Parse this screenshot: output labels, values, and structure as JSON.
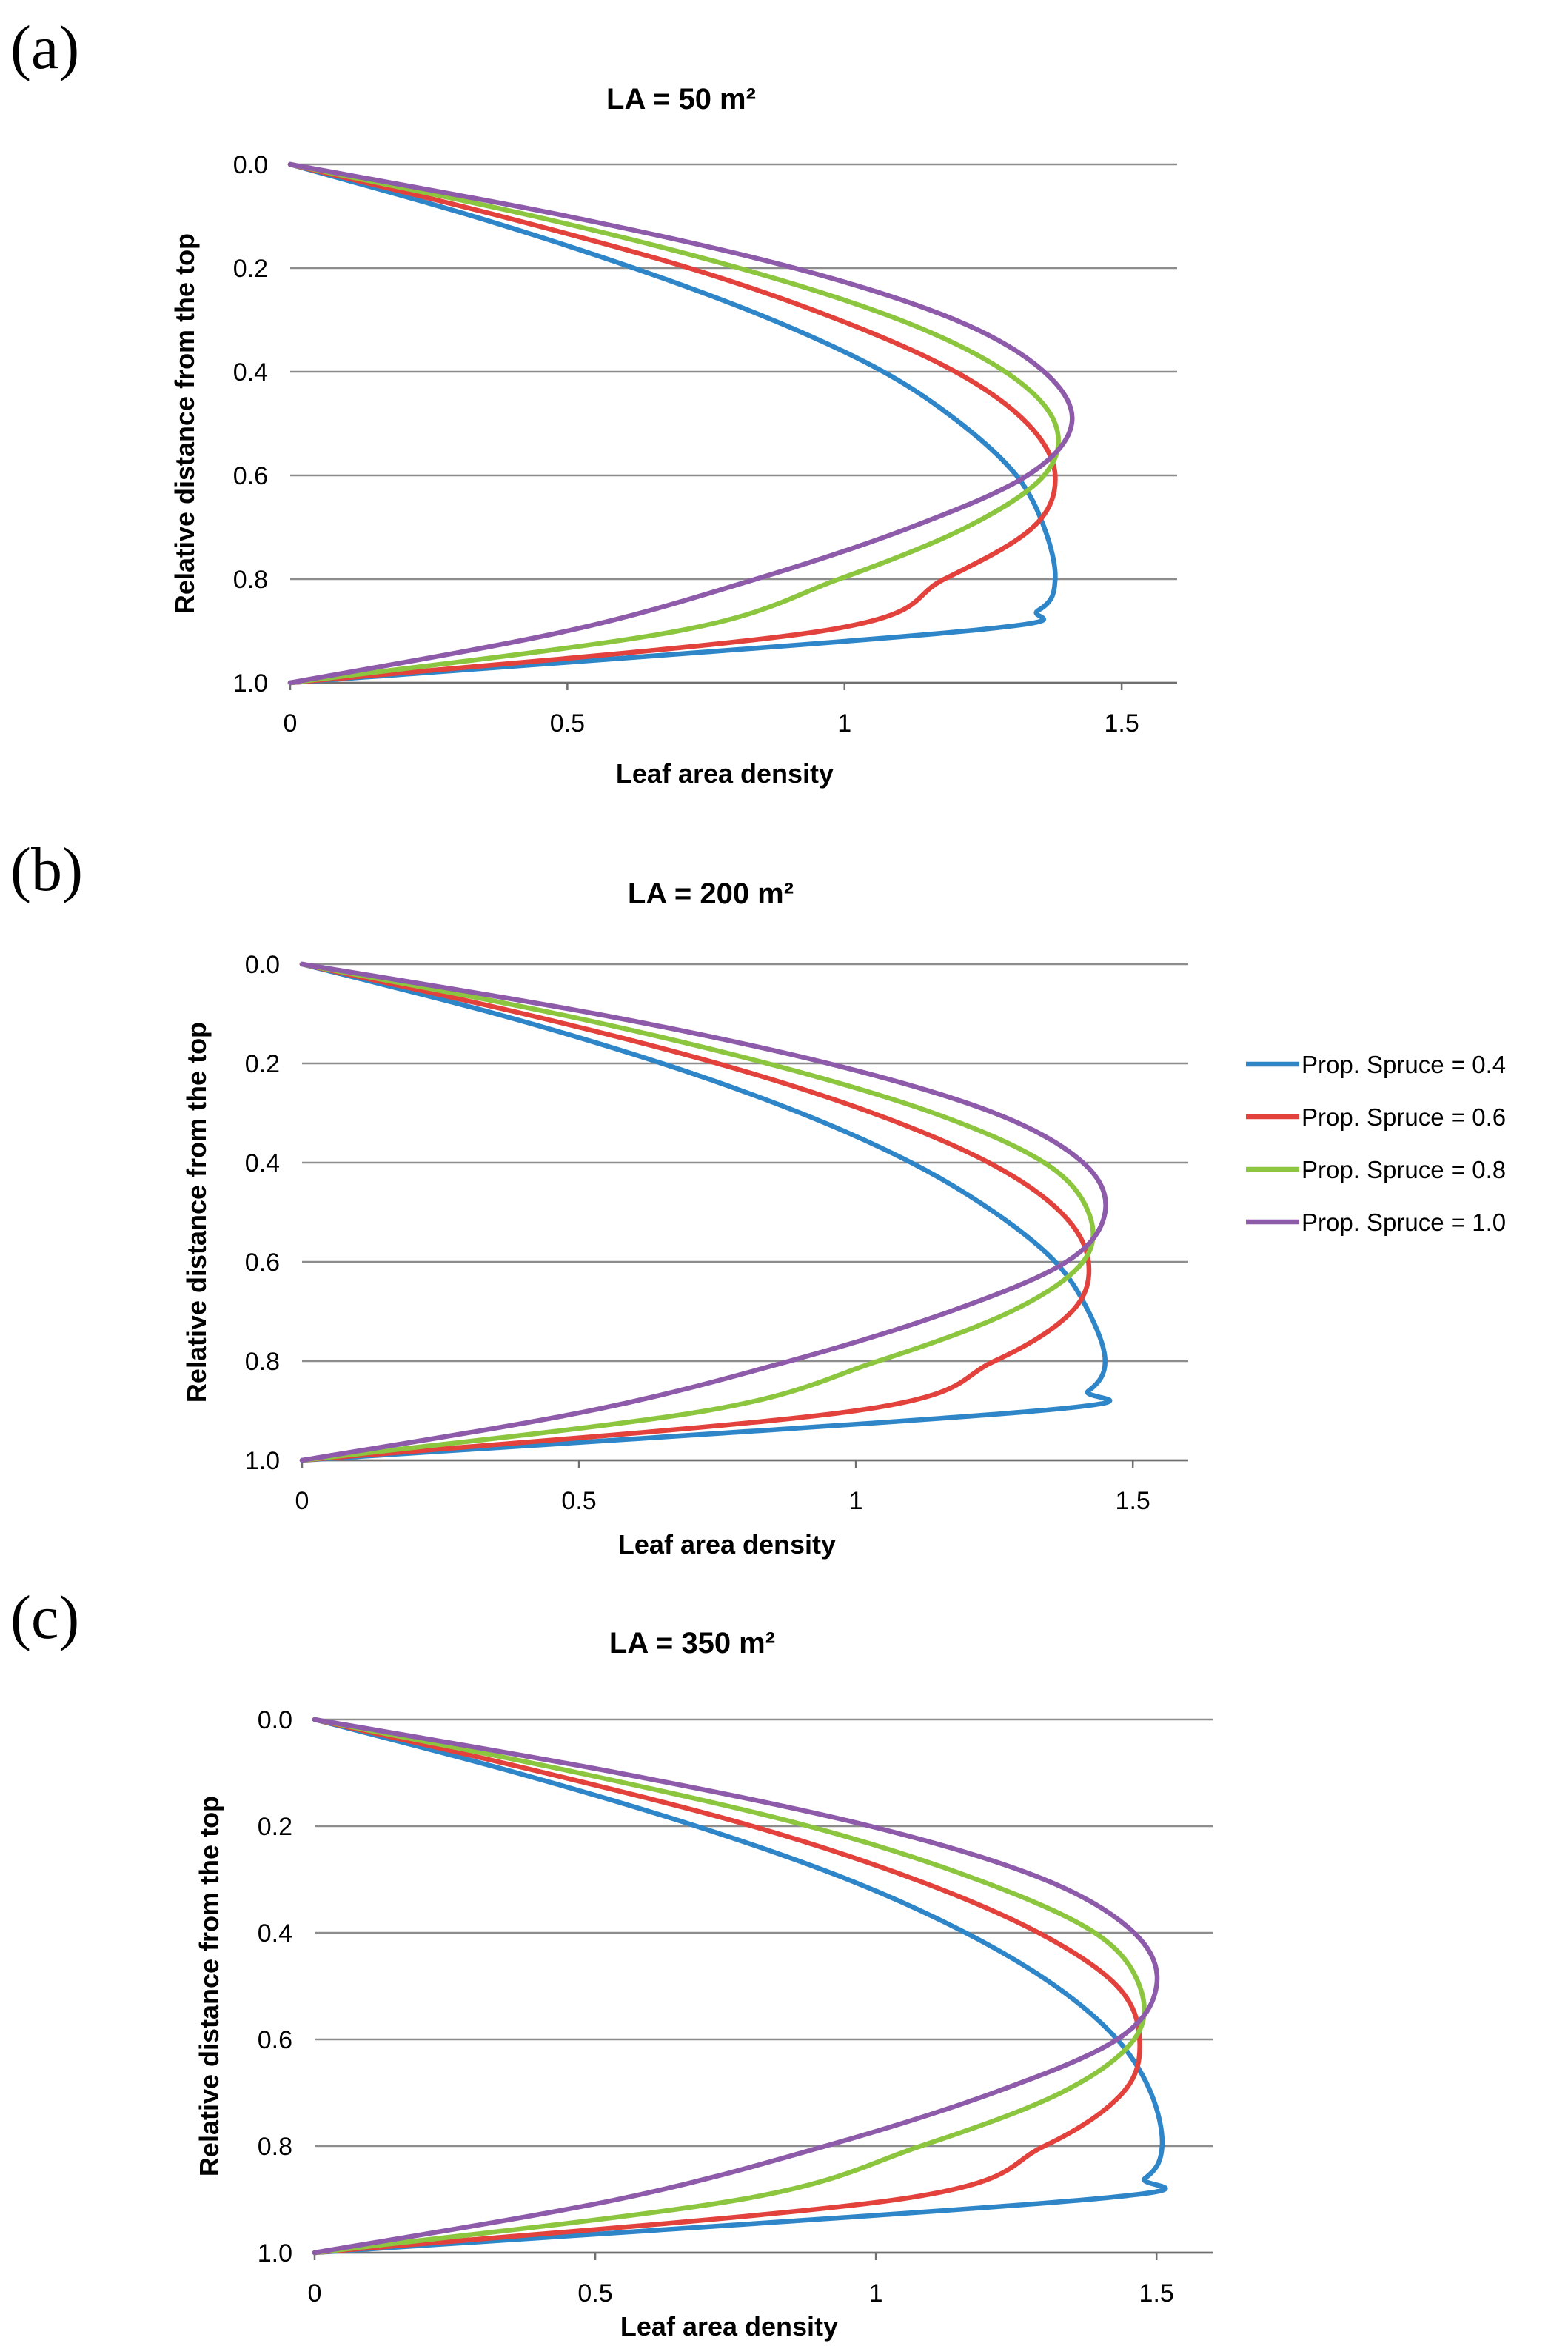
{
  "chart_data": [
    {
      "type": "line",
      "panel_label": "(a)",
      "title": "LA = 50 m²",
      "xlabel": "Leaf area density",
      "ylabel": "Relative distance from the top",
      "xlim": [
        0,
        1.6
      ],
      "ylim": [
        0,
        1
      ],
      "y_reversed": true,
      "grid": "horizontal",
      "xticks": [
        "0",
        "0.5",
        "1",
        "1.5"
      ],
      "yticks": [
        "0.0",
        "0.2",
        "0.4",
        "0.6",
        "0.8",
        "1.0"
      ],
      "series": [
        {
          "name": "Prop. Spruce = 0.4",
          "color": "#2E86C9",
          "x": [
            0,
            0.33,
            0.62,
            0.87,
            1.07,
            1.21,
            1.31,
            1.36,
            1.38,
            1.35,
            1.22,
            0
          ],
          "y": [
            0,
            0.1,
            0.2,
            0.3,
            0.4,
            0.5,
            0.6,
            0.7,
            0.8,
            0.86,
            0.9,
            1.0
          ]
        },
        {
          "name": "Prop. Spruce = 0.6",
          "color": "#E2413C",
          "x": [
            0,
            0.38,
            0.72,
            0.99,
            1.2,
            1.33,
            1.38,
            1.34,
            1.18,
            0.96,
            0
          ],
          "y": [
            0,
            0.1,
            0.2,
            0.3,
            0.4,
            0.5,
            0.6,
            0.7,
            0.8,
            0.9,
            1.0
          ]
        },
        {
          "name": "Prop. Spruce = 0.8",
          "color": "#8CC63F",
          "x": [
            0,
            0.44,
            0.81,
            1.1,
            1.29,
            1.38,
            1.36,
            1.22,
            0.99,
            0.7,
            0
          ],
          "y": [
            0,
            0.1,
            0.2,
            0.3,
            0.4,
            0.5,
            0.6,
            0.7,
            0.8,
            0.9,
            1.0
          ]
        },
        {
          "name": "Prop. Spruce = 1.0",
          "color": "#8E5BAA",
          "x": [
            0,
            0.5,
            0.91,
            1.2,
            1.36,
            1.41,
            1.33,
            1.12,
            0.84,
            0.5,
            0
          ],
          "y": [
            0,
            0.1,
            0.2,
            0.3,
            0.4,
            0.5,
            0.6,
            0.7,
            0.8,
            0.9,
            1.0
          ]
        }
      ]
    },
    {
      "type": "line",
      "panel_label": "(b)",
      "title": "LA = 200 m²",
      "xlabel": "Leaf area density",
      "ylabel": "Relative distance from the top",
      "xlim": [
        0,
        1.6
      ],
      "ylim": [
        0,
        1
      ],
      "y_reversed": true,
      "grid": "horizontal",
      "xticks": [
        "0",
        "0.5",
        "1",
        "1.5"
      ],
      "yticks": [
        "0.0",
        "0.2",
        "0.4",
        "0.6",
        "0.8",
        "1.0"
      ],
      "legend": {
        "position": "right",
        "entries": [
          "Prop. Spruce = 0.4",
          "Prop. Spruce = 0.6",
          "Prop. Spruce = 0.8",
          "Prop. Spruce = 1.0"
        ]
      },
      "series": [
        {
          "name": "Prop. Spruce = 0.4",
          "color": "#2E86C9",
          "x": [
            0,
            0.35,
            0.65,
            0.9,
            1.1,
            1.25,
            1.36,
            1.42,
            1.45,
            1.42,
            1.33,
            0
          ],
          "y": [
            0,
            0.1,
            0.2,
            0.3,
            0.4,
            0.5,
            0.6,
            0.7,
            0.8,
            0.86,
            0.9,
            1.0
          ]
        },
        {
          "name": "Prop. Spruce = 0.6",
          "color": "#E2413C",
          "x": [
            0,
            0.4,
            0.75,
            1.03,
            1.24,
            1.37,
            1.42,
            1.39,
            1.25,
            1.0,
            0
          ],
          "y": [
            0,
            0.1,
            0.2,
            0.3,
            0.4,
            0.5,
            0.6,
            0.7,
            0.8,
            0.9,
            1.0
          ]
        },
        {
          "name": "Prop. Spruce = 0.8",
          "color": "#8CC63F",
          "x": [
            0,
            0.46,
            0.84,
            1.14,
            1.34,
            1.42,
            1.41,
            1.28,
            1.04,
            0.73,
            0
          ],
          "y": [
            0,
            0.1,
            0.2,
            0.3,
            0.4,
            0.5,
            0.6,
            0.7,
            0.8,
            0.9,
            1.0
          ]
        },
        {
          "name": "Prop. Spruce = 1.0",
          "color": "#8E5BAA",
          "x": [
            0,
            0.53,
            0.95,
            1.25,
            1.41,
            1.45,
            1.38,
            1.17,
            0.88,
            0.52,
            0
          ],
          "y": [
            0,
            0.1,
            0.2,
            0.3,
            0.4,
            0.5,
            0.6,
            0.7,
            0.8,
            0.9,
            1.0
          ]
        }
      ]
    },
    {
      "type": "line",
      "panel_label": "(c)",
      "title": "LA = 350 m²",
      "xlabel": "Leaf area density",
      "ylabel": "Relative distance from the top",
      "xlim": [
        0,
        1.6
      ],
      "ylim": [
        0,
        1
      ],
      "y_reversed": true,
      "grid": "horizontal",
      "xticks": [
        "0",
        "0.5",
        "1",
        "1.5"
      ],
      "yticks": [
        "0.0",
        "0.2",
        "0.4",
        "0.6",
        "0.8",
        "1.0"
      ],
      "series": [
        {
          "name": "Prop. Spruce = 0.4",
          "color": "#2E86C9",
          "x": [
            0,
            0.36,
            0.68,
            0.95,
            1.16,
            1.32,
            1.43,
            1.49,
            1.51,
            1.48,
            1.38,
            0
          ],
          "y": [
            0,
            0.1,
            0.2,
            0.3,
            0.4,
            0.5,
            0.6,
            0.7,
            0.8,
            0.86,
            0.9,
            1.0
          ]
        },
        {
          "name": "Prop. Spruce = 0.6",
          "color": "#E2413C",
          "x": [
            0,
            0.41,
            0.78,
            1.07,
            1.29,
            1.43,
            1.47,
            1.44,
            1.3,
            1.04,
            0
          ],
          "y": [
            0,
            0.1,
            0.2,
            0.3,
            0.4,
            0.5,
            0.6,
            0.7,
            0.8,
            0.9,
            1.0
          ]
        },
        {
          "name": "Prop. Spruce = 0.8",
          "color": "#8CC63F",
          "x": [
            0,
            0.47,
            0.88,
            1.18,
            1.39,
            1.47,
            1.46,
            1.33,
            1.08,
            0.76,
            0
          ],
          "y": [
            0,
            0.1,
            0.2,
            0.3,
            0.4,
            0.5,
            0.6,
            0.7,
            0.8,
            0.9,
            1.0
          ]
        },
        {
          "name": "Prop. Spruce = 1.0",
          "color": "#8E5BAA",
          "x": [
            0,
            0.54,
            0.99,
            1.3,
            1.46,
            1.5,
            1.43,
            1.21,
            0.91,
            0.54,
            0
          ],
          "y": [
            0,
            0.1,
            0.2,
            0.3,
            0.4,
            0.5,
            0.6,
            0.7,
            0.8,
            0.9,
            1.0
          ]
        }
      ]
    }
  ]
}
